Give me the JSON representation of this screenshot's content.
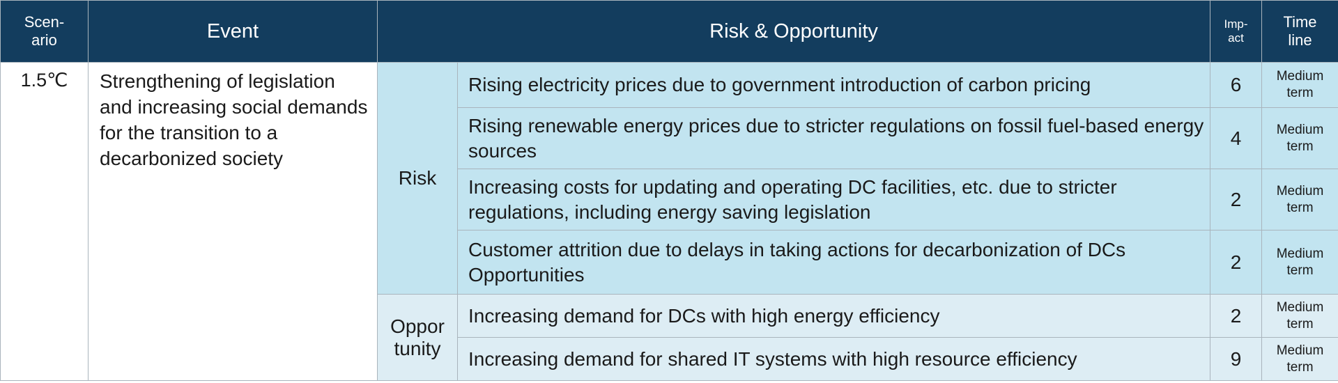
{
  "header": {
    "scenario": "Scen-\nario",
    "event": "Event",
    "risk_opportunity": "Risk  & Opportunity",
    "impact": "Imp-\nact",
    "timeline": "Time\nline"
  },
  "table": {
    "scenario": "1.5℃",
    "event": "Strengthening of legislation and increasing social demands for the transition to a decarbonized society",
    "groups": [
      {
        "category": "Risk",
        "items": [
          {
            "description": "Rising electricity prices due to government introduction of carbon pricing",
            "impact": 6,
            "timeline": "Medium\nterm"
          },
          {
            "description": "Rising renewable energy prices due to stricter regulations on fossil fuel-based energy sources",
            "impact": 4,
            "timeline": "Medium\nterm"
          },
          {
            "description": "Increasing costs for updating and operating DC facilities, etc. due to stricter regulations, including energy saving legislation",
            "impact": 2,
            "timeline": "Medium\nterm"
          },
          {
            "description": "Customer attrition due to delays in taking actions for decarbonization of DCs Opportunities",
            "impact": 2,
            "timeline": "Medium\nterm"
          }
        ]
      },
      {
        "category": "Oppor\ntunity",
        "items": [
          {
            "description": "Increasing demand for DCs with high energy efficiency",
            "impact": 2,
            "timeline": "Medium\nterm"
          },
          {
            "description": "Increasing demand for shared IT systems with high resource efficiency",
            "impact": 9,
            "timeline": "Medium\nterm"
          }
        ]
      }
    ]
  }
}
